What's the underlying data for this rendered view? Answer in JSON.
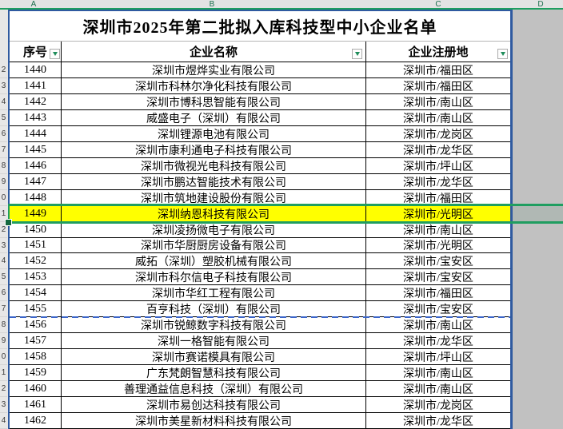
{
  "column_letters": [
    "A",
    "B",
    "C",
    "D"
  ],
  "table": {
    "title": "深圳市2025年第二批拟入库科技型中小企业名单",
    "columns": [
      {
        "key": "no",
        "label": "序号"
      },
      {
        "key": "name",
        "label": "企业名称"
      },
      {
        "key": "loc",
        "label": "企业注册地"
      }
    ],
    "rows": [
      {
        "row_digit": "2",
        "no": "1440",
        "name": "深圳市煜烨实业有限公司",
        "loc": "深圳市/福田区"
      },
      {
        "row_digit": "3",
        "no": "1441",
        "name": "深圳市科林尔净化科技有限公司",
        "loc": "深圳市/福田区"
      },
      {
        "row_digit": "4",
        "no": "1442",
        "name": "深圳市博科思智能有限公司",
        "loc": "深圳市/南山区"
      },
      {
        "row_digit": "5",
        "no": "1443",
        "name": "威盛电子（深圳）有限公司",
        "loc": "深圳市/南山区"
      },
      {
        "row_digit": "6",
        "no": "1444",
        "name": "深圳锂源电池有限公司",
        "loc": "深圳市/龙岗区"
      },
      {
        "row_digit": "7",
        "no": "1445",
        "name": "深圳市康利通电子科技有限公司",
        "loc": "深圳市/龙华区"
      },
      {
        "row_digit": "8",
        "no": "1446",
        "name": "深圳市微视光电科技有限公司",
        "loc": "深圳市/坪山区"
      },
      {
        "row_digit": "9",
        "no": "1447",
        "name": "深圳市鹏达智能技术有限公司",
        "loc": "深圳市/龙华区"
      },
      {
        "row_digit": "0",
        "no": "1448",
        "name": "深圳市筑地建设股份有限公司",
        "loc": "深圳市/福田区"
      },
      {
        "row_digit": "1",
        "no": "1449",
        "name": "深圳纳恩科技有限公司",
        "loc": "深圳市/光明区"
      },
      {
        "row_digit": "2",
        "no": "1450",
        "name": "深圳凌扬微电子有限公司",
        "loc": "深圳市/南山区"
      },
      {
        "row_digit": "3",
        "no": "1451",
        "name": "深圳市华厨厨房设备有限公司",
        "loc": "深圳市/光明区"
      },
      {
        "row_digit": "4",
        "no": "1452",
        "name": "威拓（深圳）塑胶机械有限公司",
        "loc": "深圳市/宝安区"
      },
      {
        "row_digit": "5",
        "no": "1453",
        "name": "深圳市科尔信电子科技有限公司",
        "loc": "深圳市/宝安区"
      },
      {
        "row_digit": "6",
        "no": "1454",
        "name": "深圳市华红工程有限公司",
        "loc": "深圳市/福田区"
      },
      {
        "row_digit": "7",
        "no": "1455",
        "name": "百亨科技（深圳）有限公司",
        "loc": "深圳市/宝安区"
      },
      {
        "row_digit": "8",
        "no": "1456",
        "name": "深圳市锐鲸数字科技有限公司",
        "loc": "深圳市/南山区"
      },
      {
        "row_digit": "9",
        "no": "1457",
        "name": "深圳一格智能有限公司",
        "loc": "深圳市/龙华区"
      },
      {
        "row_digit": "0",
        "no": "1458",
        "name": "深圳市赛诺模具有限公司",
        "loc": "深圳市/坪山区"
      },
      {
        "row_digit": "1",
        "no": "1459",
        "name": "广东梵朗智慧科技有限公司",
        "loc": "深圳市/南山区"
      },
      {
        "row_digit": "2",
        "no": "1460",
        "name": "善理通益信息科技（深圳）有限公司",
        "loc": "深圳市/南山区"
      },
      {
        "row_digit": "3",
        "no": "1461",
        "name": "深圳市易创达科技有限公司",
        "loc": "深圳市/龙岗区"
      },
      {
        "row_digit": "4",
        "no": "1462",
        "name": "深圳市美星新材料科技有限公司",
        "loc": "深圳市/龙华区"
      }
    ],
    "highlighted_row_no": "1449",
    "page_break_after_no": "1455"
  },
  "colors": {
    "highlight_yellow": "#ffff00",
    "selection_green": "#1f9e60",
    "print_border_blue": "#2f5aa0",
    "page_break_dash_blue": "#3a64c8",
    "outside_area_gray": "#c1c1c1",
    "header_strip_gray": "#e3e3e3",
    "column_letter_green": "#1c6f4e",
    "cell_border_black": "#000000"
  }
}
